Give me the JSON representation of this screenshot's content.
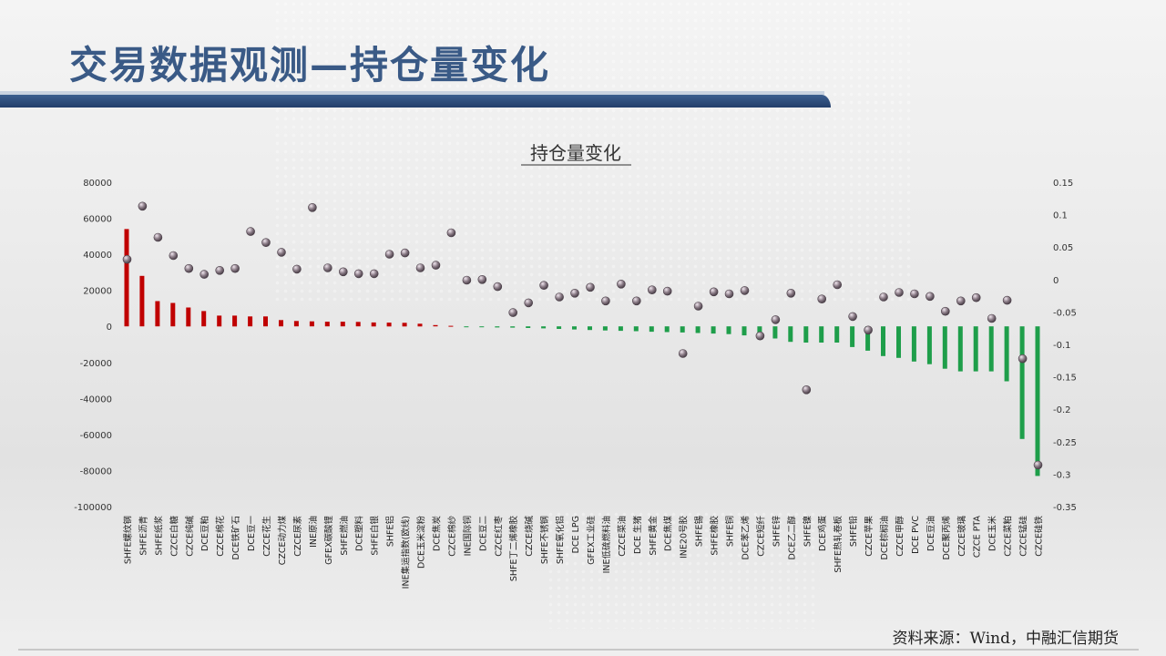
{
  "slide": {
    "title": "交易数据观测—持仓量变化",
    "source": "资料来源：Wind，中融汇信期货"
  },
  "colors": {
    "title": "#3a5a86",
    "band": "#223e6a",
    "positive_bar": "#c00000",
    "negative_bar": "#1e9e4a",
    "marker": "#8a7b86"
  },
  "chart_data": {
    "type": "bar",
    "title": "持仓量变化",
    "left_axis": {
      "min": -100000,
      "max": 80000,
      "step": 20000
    },
    "right_axis": {
      "min": -0.35,
      "max": 0.15,
      "step": 0.05
    },
    "grid": false,
    "legend": "none",
    "categories": [
      "SHFE螺纹钢",
      "SHFE沥青",
      "SHFE纸浆",
      "CZCE白糖",
      "CZCE纯碱",
      "DCE豆粕",
      "CZCE棉花",
      "DCE铁矿石",
      "DCE豆一",
      "CZCE花生",
      "CZCE动力煤",
      "CZCE尿素",
      "INE原油",
      "GFEX碳酸锂",
      "SHFE燃油",
      "DCE塑料",
      "SHFE白银",
      "SHFE铝",
      "INE集运指数(欧线)",
      "DCE玉米淀粉",
      "DCE焦炭",
      "CZCE棉纱",
      "INE国际铜",
      "DCE豆二",
      "CZCE红枣",
      "SHFE丁二烯橡胶",
      "CZCE烧碱",
      "SHFE不锈钢",
      "SHFE氧化铝",
      "DCE LPG",
      "GFEX工业硅",
      "INE低硫燃料油",
      "CZCE菜油",
      "DCE 生猪",
      "SHFE黄金",
      "DCE焦煤",
      "INE20号胶",
      "SHFE锡",
      "SHFE橡胶",
      "SHFE铜",
      "DCE苯乙烯",
      "CZCE短纤",
      "SHFE锌",
      "DCE乙二醇",
      "SHFE镍",
      "DCE鸡蛋",
      "SHFE热轧卷板",
      "SHFE铅",
      "CZCE苹果",
      "DCE棕榈油",
      "CZCE甲醇",
      "DCE PVC",
      "DCE豆油",
      "DCE聚丙烯",
      "CZCE玻璃",
      "CZCE PTA",
      "DCE玉米",
      "CZCE菜粕",
      "CZCE锰硅",
      "CZCE硅铁"
    ],
    "series": [
      {
        "axis": "left",
        "type": "bar",
        "values": [
          54000,
          28000,
          14000,
          13000,
          10500,
          8500,
          6000,
          6000,
          5500,
          5500,
          3500,
          3000,
          2800,
          2600,
          2600,
          2500,
          2200,
          2100,
          2000,
          1500,
          700,
          300,
          -400,
          -500,
          -600,
          -700,
          -900,
          -1100,
          -1400,
          -1700,
          -2000,
          -2300,
          -2500,
          -2700,
          -3000,
          -3200,
          -3400,
          -3700,
          -4000,
          -4300,
          -5000,
          -6000,
          -6700,
          -8600,
          -9000,
          -9000,
          -9000,
          -11500,
          -13500,
          -16500,
          -17500,
          -19500,
          -21000,
          -23500,
          -25000,
          -25000,
          -25000,
          -30500,
          -62500,
          -83000
        ]
      },
      {
        "axis": "right",
        "type": "scatter",
        "values": [
          0.031,
          0.113,
          0.065,
          0.037,
          0.017,
          0.008,
          0.014,
          0.017,
          0.074,
          0.057,
          0.042,
          0.016,
          0.111,
          0.018,
          0.012,
          0.009,
          0.009,
          0.039,
          0.041,
          0.018,
          0.022,
          0.072,
          -0.001,
          0,
          -0.011,
          -0.051,
          -0.036,
          -0.009,
          -0.027,
          -0.021,
          -0.012,
          -0.033,
          -0.007,
          -0.033,
          -0.016,
          -0.018,
          -0.114,
          -0.041,
          -0.019,
          -0.022,
          -0.017,
          -0.087,
          -0.062,
          -0.021,
          -0.17,
          -0.03,
          -0.008,
          -0.057,
          -0.078,
          -0.027,
          -0.02,
          -0.022,
          -0.026,
          -0.049,
          -0.033,
          -0.028,
          -0.06,
          -0.032,
          -0.122,
          -0.286
        ]
      }
    ]
  }
}
